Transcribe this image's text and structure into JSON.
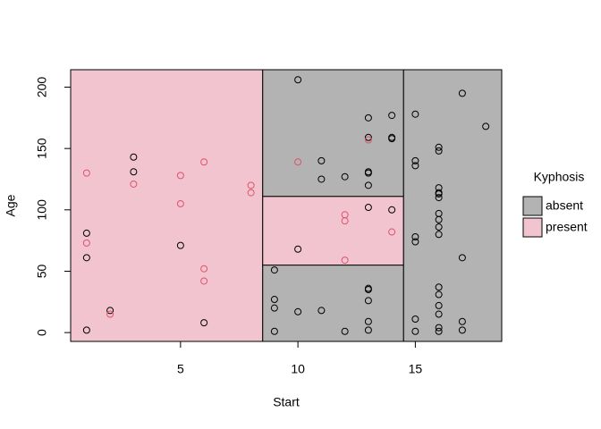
{
  "chart_data": {
    "type": "partition-scatter",
    "x_label": "Start",
    "y_label": "Age",
    "xlim": [
      0.32,
      18.68
    ],
    "ylim": [
      -7.2,
      214.2
    ],
    "xticks": [
      5,
      10,
      15
    ],
    "yticks": [
      0,
      50,
      100,
      150,
      200
    ],
    "legend_title": "Kyphosis",
    "classes": [
      {
        "name": "absent",
        "fill": "#b3b3b3",
        "point_color": "#000000"
      },
      {
        "name": "present",
        "fill": "#f2c4d0",
        "point_color": "#df536b"
      }
    ],
    "regions": [
      {
        "class": 1,
        "x": [
          null,
          8.5
        ],
        "y": [
          null,
          null
        ]
      },
      {
        "class": 0,
        "x": [
          8.5,
          14.5
        ],
        "y": [
          null,
          55
        ]
      },
      {
        "class": 1,
        "x": [
          8.5,
          14.5
        ],
        "y": [
          55,
          111
        ]
      },
      {
        "class": 0,
        "x": [
          8.5,
          14.5
        ],
        "y": [
          111,
          null
        ]
      },
      {
        "class": 0,
        "x": [
          14.5,
          null
        ],
        "y": [
          null,
          null
        ]
      }
    ],
    "series": [
      {
        "class": 0,
        "x": [
          1,
          1,
          1,
          2,
          3,
          3,
          5,
          6,
          9,
          9,
          9,
          9,
          10,
          10,
          10,
          11,
          11,
          11,
          12,
          12,
          13,
          13,
          13,
          13,
          13,
          13,
          13,
          13,
          13,
          13,
          13,
          14,
          14,
          14,
          14,
          15,
          15,
          15,
          15,
          15,
          15,
          15,
          16,
          16,
          16,
          16,
          16,
          16,
          16,
          16,
          16,
          16,
          16,
          16,
          16,
          16,
          16,
          16,
          17,
          17,
          17,
          17,
          18
        ],
        "y": [
          81,
          61,
          2,
          18,
          143,
          131,
          71,
          8,
          51,
          27,
          20,
          1,
          206,
          68,
          17,
          140,
          125,
          18,
          127,
          1,
          175,
          159,
          131,
          130,
          120,
          102,
          36,
          35,
          26,
          9,
          2,
          177,
          159,
          158,
          100,
          178,
          140,
          136,
          78,
          74,
          11,
          1,
          151,
          148,
          118,
          114,
          113,
          110,
          97,
          92,
          86,
          80,
          37,
          31,
          22,
          15,
          4,
          1,
          195,
          61,
          9,
          2,
          168
        ]
      },
      {
        "class": 1,
        "x": [
          1,
          1,
          2,
          3,
          5,
          5,
          6,
          6,
          6,
          8,
          8,
          10,
          12,
          12,
          12,
          13,
          14
        ],
        "y": [
          130,
          73,
          15,
          121,
          128,
          105,
          139,
          52,
          42,
          120,
          114,
          139,
          96,
          91,
          59,
          157,
          82
        ]
      }
    ]
  }
}
